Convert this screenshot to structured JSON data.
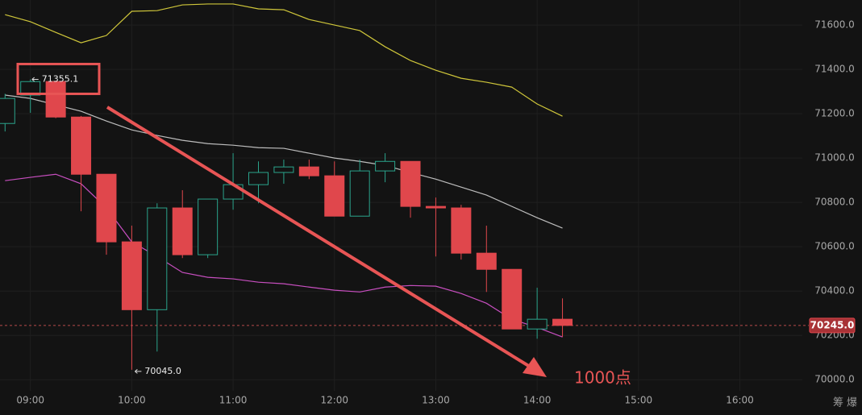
{
  "chart_data": {
    "type": "candlestick",
    "x": [
      "08:45",
      "09:00",
      "09:15",
      "09:30",
      "09:45",
      "10:00",
      "10:15",
      "10:30",
      "10:45",
      "11:00",
      "11:15",
      "11:30",
      "11:45",
      "12:00",
      "12:15",
      "12:30",
      "12:45",
      "13:00",
      "13:15",
      "13:30",
      "13:45",
      "14:00",
      "14:15"
    ],
    "open": [
      71156,
      71284,
      71345,
      71185,
      70927,
      70622,
      70316,
      70775,
      70564,
      70815,
      70880,
      70935,
      70960,
      70920,
      70738,
      70942,
      70985,
      70782,
      70775,
      70571,
      70498,
      70229,
      70273
    ],
    "high": [
      71290,
      71355.1,
      71350,
      71190,
      70927,
      70695,
      70796,
      70855,
      70815,
      71022,
      70985,
      70993,
      70993,
      70985,
      70993,
      71022,
      70985,
      70822,
      70789,
      70695,
      70498,
      70415,
      70367
    ],
    "low": [
      71120,
      71204,
      71180,
      70760,
      70564,
      70045.0,
      70127,
      70549,
      70549,
      70767,
      70796,
      70884,
      70905,
      70738,
      70738,
      70891,
      70731,
      70556,
      70542,
      70396,
      70229,
      70185,
      70193
    ],
    "close": [
      71269,
      71345,
      71185,
      70927,
      70622,
      70316,
      70775,
      70564,
      70815,
      70880,
      70935,
      70960,
      70920,
      70738,
      70942,
      70985,
      70782,
      70775,
      70571,
      70498,
      70229,
      70273,
      70245.0
    ],
    "up_color": "#2ba48c",
    "down_color": "#e0474c",
    "lines": [
      {
        "color": "#cfc63a",
        "values": [
          71647,
          71615,
          71567,
          71520,
          71553,
          71662,
          71665,
          71691,
          71695,
          71695,
          71673,
          71669,
          71625,
          71600,
          71575,
          71502,
          71440,
          71396,
          71360,
          71342,
          71320,
          71244,
          71189
        ]
      },
      {
        "color": "#bdbdbd",
        "values": [
          71284,
          71269,
          71240,
          71211,
          71167,
          71127,
          71102,
          71080,
          71065,
          71058,
          71047,
          71044,
          71022,
          71000,
          70985,
          70967,
          70935,
          70905,
          70869,
          70833,
          70782,
          70731,
          70684
        ]
      },
      {
        "color": "#c84fc0",
        "values": [
          70898,
          70913,
          70927,
          70884,
          70775,
          70622,
          70556,
          70484,
          70462,
          70455,
          70440,
          70433,
          70418,
          70404,
          70396,
          70418,
          70425,
          70422,
          70389,
          70345,
          70273,
          70236,
          70193
        ]
      }
    ],
    "xlim": [
      "08:42",
      "16:37"
    ],
    "xticks": [
      "09:00",
      "10:00",
      "11:00",
      "12:00",
      "13:00",
      "14:00",
      "15:00",
      "16:00"
    ],
    "ylim": [
      69950,
      71713
    ],
    "yticks": [
      {
        "value": 70000,
        "label": "70000.0"
      },
      {
        "value": 70200,
        "label": "70200.0"
      },
      {
        "value": 70400,
        "label": "70400.0"
      },
      {
        "value": 70600,
        "label": "70600.0"
      },
      {
        "value": 70800,
        "label": "70800.0"
      },
      {
        "value": 71000,
        "label": "71000.0"
      },
      {
        "value": 71200,
        "label": "71200.0"
      },
      {
        "value": 71400,
        "label": "71400.0"
      },
      {
        "value": 71600,
        "label": "71600.0"
      }
    ],
    "grid": true,
    "high_label": "71355.1",
    "low_label": "70045.0",
    "last_price": {
      "value": 70245.0,
      "label": "70245.0"
    },
    "annotation": "1000点",
    "footer_tools": [
      "筹",
      "爆"
    ]
  }
}
